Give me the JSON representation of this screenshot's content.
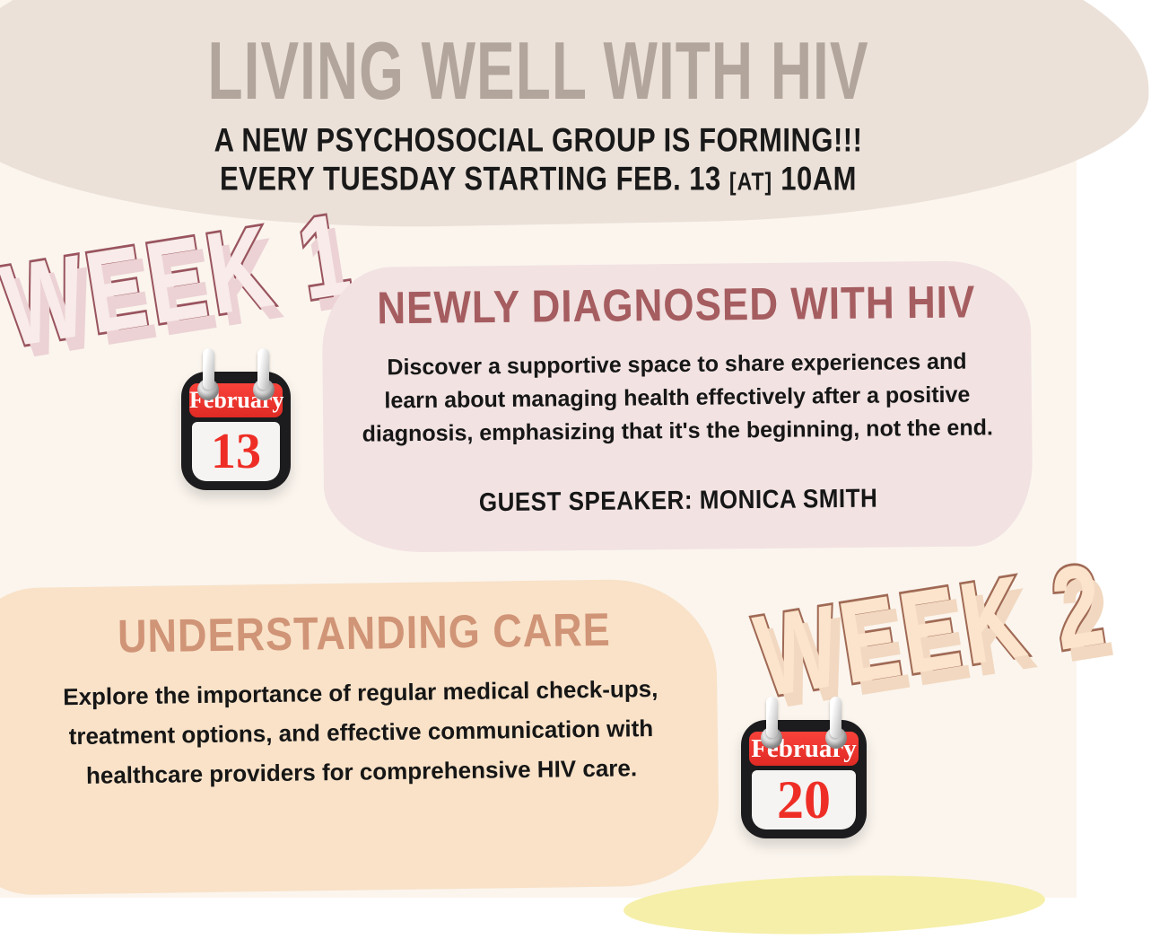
{
  "header": {
    "title": "LIVING WELL WITH HIV",
    "subtitle_line1": "A NEW PSYCHOSOCIAL GROUP IS FORMING!!!",
    "subtitle_line2_prefix": "EVERY TUESDAY STARTING FEB. 13 ",
    "subtitle_line2_at": "[AT]",
    "subtitle_line2_suffix": " 10AM"
  },
  "week1": {
    "label": "WEEK 1",
    "calendar": {
      "month": "February",
      "day": "13"
    },
    "heading": "NEWLY DIAGNOSED WITH HIV",
    "body_lines": [
      "Discover a supportive space to share experiences and",
      "learn about managing health effectively after a positive",
      "diagnosis, emphasizing that it's the beginning, not the end."
    ],
    "speaker": "GUEST SPEAKER: MONICA SMITH"
  },
  "week2": {
    "label": "WEEK 2",
    "calendar": {
      "month": "February",
      "day": "20"
    },
    "heading": "UNDERSTANDING CARE",
    "body_lines": [
      "Explore the importance of regular medical check-ups,",
      "treatment options, and effective communication with",
      "healthcare providers for comprehensive HIV care."
    ]
  },
  "colors": {
    "background": "#fbf5ee",
    "top_banner_blob": "#ebe1d9",
    "title_text": "#b2a59b",
    "body_text": "#191919",
    "week1_card": "#f2e2e2",
    "week1_heading": "#a55d60",
    "week1_bubble_fill": "#f8ebe9",
    "week1_bubble_outline": "#99545e",
    "week2_card": "#f9e2c8",
    "week2_heading": "#d09477",
    "week2_bubble_fill": "#fce4cc",
    "week2_bubble_outline": "#a06a55",
    "calendar_red": "#ee3430",
    "calendar_black": "#1c1c1e",
    "yellow_accent": "#f6efa9"
  }
}
